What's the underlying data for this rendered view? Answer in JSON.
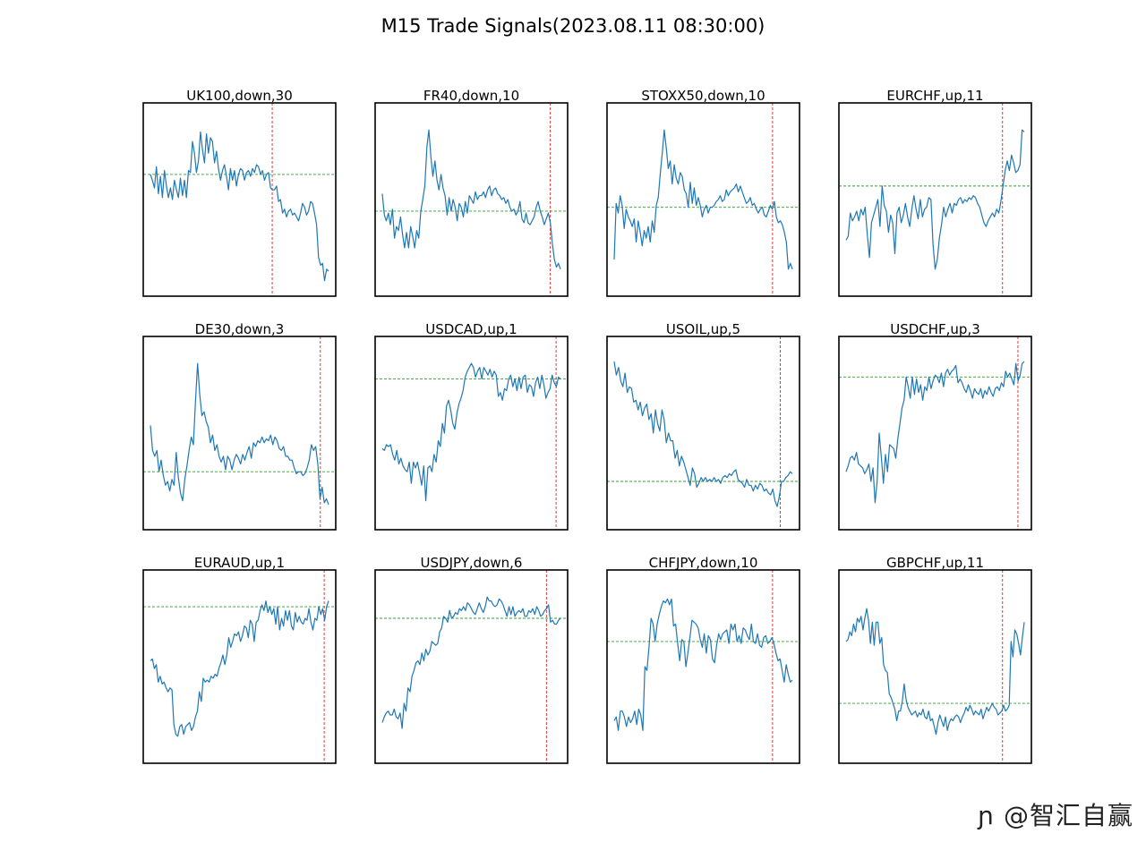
{
  "figure": {
    "title": "M15 Trade Signals(2023.08.11 08:30:00)",
    "watermark": "ɲ @智汇自赢"
  },
  "colors": {
    "price_line": "#1f77b4",
    "reference_line": "#2ca02c",
    "signal_line": "#d62728",
    "axes": "#000000"
  },
  "chart_data": [
    {
      "type": "line",
      "title": "UK100,down,30",
      "ref": 0.63,
      "signal_frac": 0.67,
      "values": [
        0.63,
        0.6,
        0.56,
        0.67,
        0.53,
        0.62,
        0.51,
        0.65,
        0.57,
        0.51,
        0.56,
        0.5,
        0.6,
        0.55,
        0.51,
        0.61,
        0.52,
        0.6,
        0.51,
        0.65,
        0.64,
        0.8,
        0.74,
        0.64,
        0.7,
        0.85,
        0.76,
        0.69,
        0.84,
        0.74,
        0.82,
        0.8,
        0.69,
        0.75,
        0.66,
        0.6,
        0.65,
        0.68,
        0.62,
        0.55,
        0.66,
        0.6,
        0.65,
        0.57,
        0.63,
        0.66,
        0.65,
        0.6,
        0.64,
        0.65,
        0.62,
        0.66,
        0.64,
        0.68,
        0.67,
        0.63,
        0.65,
        0.6,
        0.63,
        0.64,
        0.56,
        0.55,
        0.55,
        0.57,
        0.49,
        0.5,
        0.43,
        0.45,
        0.41,
        0.44,
        0.45,
        0.42,
        0.43,
        0.41,
        0.39,
        0.43,
        0.48,
        0.46,
        0.42,
        0.44,
        0.49,
        0.48,
        0.43,
        0.37,
        0.2,
        0.16,
        0.17,
        0.08,
        0.14,
        0.13
      ]
    },
    {
      "type": "line",
      "title": "FR40,down,10",
      "ref": 0.44,
      "signal_frac": 0.91,
      "values": [
        0.53,
        0.42,
        0.39,
        0.43,
        0.37,
        0.45,
        0.3,
        0.36,
        0.34,
        0.41,
        0.32,
        0.25,
        0.33,
        0.25,
        0.36,
        0.31,
        0.25,
        0.34,
        0.3,
        0.44,
        0.5,
        0.57,
        0.77,
        0.86,
        0.72,
        0.62,
        0.7,
        0.6,
        0.55,
        0.63,
        0.56,
        0.52,
        0.42,
        0.51,
        0.44,
        0.5,
        0.46,
        0.39,
        0.48,
        0.46,
        0.41,
        0.49,
        0.43,
        0.52,
        0.5,
        0.48,
        0.54,
        0.5,
        0.52,
        0.52,
        0.54,
        0.51,
        0.55,
        0.57,
        0.52,
        0.55,
        0.56,
        0.53,
        0.52,
        0.5,
        0.51,
        0.48,
        0.5,
        0.46,
        0.44,
        0.45,
        0.42,
        0.44,
        0.49,
        0.4,
        0.38,
        0.43,
        0.38,
        0.37,
        0.39,
        0.41,
        0.46,
        0.49,
        0.44,
        0.41,
        0.37,
        0.4,
        0.43,
        0.38,
        0.27,
        0.19,
        0.15,
        0.17,
        0.14
      ]
    },
    {
      "type": "line",
      "title": "STOXX50,down,10",
      "ref": 0.46,
      "signal_frac": 0.86,
      "values": [
        0.19,
        0.48,
        0.43,
        0.52,
        0.47,
        0.35,
        0.45,
        0.41,
        0.39,
        0.36,
        0.4,
        0.28,
        0.39,
        0.33,
        0.26,
        0.34,
        0.3,
        0.36,
        0.28,
        0.39,
        0.33,
        0.47,
        0.51,
        0.63,
        0.74,
        0.86,
        0.77,
        0.66,
        0.7,
        0.58,
        0.68,
        0.61,
        0.58,
        0.64,
        0.62,
        0.55,
        0.53,
        0.46,
        0.59,
        0.48,
        0.56,
        0.47,
        0.51,
        0.47,
        0.41,
        0.45,
        0.47,
        0.43,
        0.46,
        0.46,
        0.47,
        0.49,
        0.5,
        0.52,
        0.49,
        0.5,
        0.55,
        0.52,
        0.54,
        0.55,
        0.56,
        0.58,
        0.54,
        0.57,
        0.54,
        0.51,
        0.48,
        0.49,
        0.51,
        0.47,
        0.48,
        0.45,
        0.43,
        0.45,
        0.46,
        0.42,
        0.41,
        0.44,
        0.47,
        0.45,
        0.49,
        0.41,
        0.38,
        0.39,
        0.37,
        0.33,
        0.28,
        0.14,
        0.17,
        0.14
      ]
    },
    {
      "type": "line",
      "title": "EURCHF,up,11",
      "ref": 0.57,
      "signal_frac": 0.85,
      "values": [
        0.29,
        0.31,
        0.43,
        0.39,
        0.41,
        0.44,
        0.39,
        0.45,
        0.42,
        0.46,
        0.32,
        0.2,
        0.38,
        0.42,
        0.46,
        0.5,
        0.36,
        0.57,
        0.47,
        0.44,
        0.33,
        0.42,
        0.38,
        0.22,
        0.43,
        0.46,
        0.38,
        0.42,
        0.48,
        0.41,
        0.36,
        0.45,
        0.52,
        0.45,
        0.4,
        0.5,
        0.41,
        0.45,
        0.46,
        0.51,
        0.5,
        0.27,
        0.14,
        0.19,
        0.3,
        0.37,
        0.46,
        0.41,
        0.45,
        0.48,
        0.43,
        0.48,
        0.47,
        0.5,
        0.51,
        0.48,
        0.5,
        0.49,
        0.51,
        0.5,
        0.52,
        0.51,
        0.48,
        0.46,
        0.42,
        0.38,
        0.36,
        0.39,
        0.41,
        0.43,
        0.41,
        0.45,
        0.43,
        0.49,
        0.57,
        0.65,
        0.7,
        0.65,
        0.73,
        0.69,
        0.64,
        0.65,
        0.68,
        0.86,
        0.85
      ]
    },
    {
      "type": "line",
      "title": "DE30,down,3",
      "ref": 0.3,
      "signal_frac": 0.92,
      "values": [
        0.54,
        0.41,
        0.38,
        0.41,
        0.3,
        0.36,
        0.28,
        0.23,
        0.25,
        0.2,
        0.26,
        0.23,
        0.4,
        0.27,
        0.19,
        0.15,
        0.26,
        0.33,
        0.41,
        0.48,
        0.44,
        0.66,
        0.86,
        0.7,
        0.59,
        0.61,
        0.56,
        0.53,
        0.45,
        0.49,
        0.41,
        0.44,
        0.38,
        0.35,
        0.38,
        0.31,
        0.38,
        0.36,
        0.31,
        0.36,
        0.39,
        0.37,
        0.34,
        0.39,
        0.36,
        0.4,
        0.43,
        0.37,
        0.45,
        0.43,
        0.46,
        0.45,
        0.48,
        0.45,
        0.47,
        0.46,
        0.49,
        0.44,
        0.48,
        0.46,
        0.42,
        0.41,
        0.43,
        0.38,
        0.38,
        0.36,
        0.36,
        0.32,
        0.29,
        0.3,
        0.3,
        0.28,
        0.29,
        0.32,
        0.36,
        0.44,
        0.41,
        0.43,
        0.34,
        0.16,
        0.22,
        0.14,
        0.16,
        0.13
      ]
    },
    {
      "type": "line",
      "title": "USDCAD,up,1",
      "ref": 0.78,
      "signal_frac": 0.94,
      "values": [
        0.42,
        0.41,
        0.44,
        0.43,
        0.44,
        0.39,
        0.36,
        0.41,
        0.34,
        0.37,
        0.33,
        0.31,
        0.3,
        0.35,
        0.24,
        0.35,
        0.32,
        0.35,
        0.29,
        0.23,
        0.33,
        0.15,
        0.32,
        0.33,
        0.3,
        0.39,
        0.35,
        0.46,
        0.43,
        0.55,
        0.5,
        0.64,
        0.67,
        0.62,
        0.55,
        0.52,
        0.6,
        0.65,
        0.68,
        0.72,
        0.79,
        0.82,
        0.84,
        0.86,
        0.84,
        0.79,
        0.82,
        0.84,
        0.78,
        0.84,
        0.82,
        0.8,
        0.83,
        0.79,
        0.82,
        0.8,
        0.69,
        0.71,
        0.67,
        0.73,
        0.72,
        0.78,
        0.8,
        0.74,
        0.78,
        0.72,
        0.79,
        0.73,
        0.79,
        0.8,
        0.71,
        0.75,
        0.74,
        0.69,
        0.76,
        0.79,
        0.73,
        0.8,
        0.75,
        0.68,
        0.71,
        0.73,
        0.8,
        0.76,
        0.74,
        0.79,
        0.78
      ]
    },
    {
      "type": "line",
      "title": "USOIL,up,5",
      "ref": 0.25,
      "signal_frac": 0.9,
      "values": [
        0.87,
        0.8,
        0.84,
        0.77,
        0.74,
        0.81,
        0.71,
        0.74,
        0.73,
        0.66,
        0.67,
        0.62,
        0.66,
        0.59,
        0.63,
        0.65,
        0.57,
        0.6,
        0.5,
        0.62,
        0.55,
        0.51,
        0.62,
        0.57,
        0.45,
        0.5,
        0.46,
        0.46,
        0.37,
        0.41,
        0.33,
        0.38,
        0.35,
        0.31,
        0.27,
        0.23,
        0.32,
        0.29,
        0.22,
        0.24,
        0.27,
        0.25,
        0.27,
        0.25,
        0.26,
        0.25,
        0.27,
        0.25,
        0.26,
        0.24,
        0.27,
        0.28,
        0.27,
        0.29,
        0.28,
        0.3,
        0.31,
        0.26,
        0.25,
        0.24,
        0.22,
        0.26,
        0.23,
        0.23,
        0.2,
        0.23,
        0.21,
        0.24,
        0.23,
        0.2,
        0.21,
        0.19,
        0.18,
        0.21,
        0.15,
        0.12,
        0.17,
        0.25,
        0.25,
        0.27,
        0.28,
        0.3,
        0.29
      ]
    },
    {
      "type": "line",
      "title": "USDCHF,up,3",
      "ref": 0.79,
      "signal_frac": 0.93,
      "values": [
        0.3,
        0.33,
        0.37,
        0.38,
        0.36,
        0.4,
        0.34,
        0.33,
        0.32,
        0.29,
        0.31,
        0.34,
        0.25,
        0.32,
        0.14,
        0.25,
        0.5,
        0.38,
        0.24,
        0.39,
        0.3,
        0.44,
        0.43,
        0.42,
        0.37,
        0.47,
        0.55,
        0.63,
        0.67,
        0.79,
        0.74,
        0.68,
        0.79,
        0.7,
        0.78,
        0.71,
        0.75,
        0.67,
        0.74,
        0.72,
        0.79,
        0.73,
        0.77,
        0.8,
        0.79,
        0.76,
        0.81,
        0.74,
        0.81,
        0.83,
        0.8,
        0.82,
        0.83,
        0.85,
        0.76,
        0.78,
        0.76,
        0.73,
        0.71,
        0.75,
        0.72,
        0.68,
        0.73,
        0.71,
        0.7,
        0.73,
        0.68,
        0.72,
        0.7,
        0.74,
        0.71,
        0.69,
        0.73,
        0.74,
        0.72,
        0.76,
        0.74,
        0.82,
        0.79,
        0.81,
        0.78,
        0.75,
        0.86,
        0.77,
        0.8,
        0.86,
        0.87
      ]
    },
    {
      "type": "line",
      "title": "EURAUD,up,1",
      "ref": 0.81,
      "signal_frac": 0.94,
      "values": [
        0.53,
        0.54,
        0.49,
        0.51,
        0.42,
        0.45,
        0.41,
        0.42,
        0.39,
        0.37,
        0.39,
        0.38,
        0.2,
        0.15,
        0.14,
        0.19,
        0.2,
        0.15,
        0.19,
        0.2,
        0.21,
        0.17,
        0.19,
        0.24,
        0.27,
        0.37,
        0.32,
        0.44,
        0.42,
        0.43,
        0.42,
        0.45,
        0.44,
        0.46,
        0.45,
        0.49,
        0.52,
        0.56,
        0.51,
        0.56,
        0.65,
        0.6,
        0.63,
        0.67,
        0.66,
        0.68,
        0.63,
        0.66,
        0.71,
        0.7,
        0.65,
        0.74,
        0.72,
        0.63,
        0.73,
        0.74,
        0.79,
        0.82,
        0.79,
        0.84,
        0.78,
        0.81,
        0.77,
        0.8,
        0.72,
        0.81,
        0.69,
        0.75,
        0.71,
        0.79,
        0.74,
        0.79,
        0.71,
        0.69,
        0.78,
        0.73,
        0.76,
        0.73,
        0.72,
        0.75,
        0.74,
        0.8,
        0.73,
        0.69,
        0.75,
        0.74,
        0.81,
        0.77,
        0.8,
        0.74,
        0.81,
        0.84
      ]
    },
    {
      "type": "line",
      "title": "USDJPY,down,6",
      "ref": 0.75,
      "signal_frac": 0.89,
      "values": [
        0.21,
        0.24,
        0.26,
        0.27,
        0.25,
        0.25,
        0.28,
        0.24,
        0.23,
        0.26,
        0.18,
        0.31,
        0.27,
        0.39,
        0.37,
        0.45,
        0.48,
        0.52,
        0.53,
        0.51,
        0.57,
        0.53,
        0.59,
        0.56,
        0.58,
        0.63,
        0.62,
        0.61,
        0.62,
        0.68,
        0.7,
        0.76,
        0.75,
        0.73,
        0.79,
        0.75,
        0.76,
        0.78,
        0.77,
        0.8,
        0.79,
        0.81,
        0.79,
        0.83,
        0.82,
        0.8,
        0.78,
        0.77,
        0.8,
        0.83,
        0.8,
        0.78,
        0.81,
        0.86,
        0.84,
        0.84,
        0.82,
        0.81,
        0.82,
        0.85,
        0.84,
        0.82,
        0.79,
        0.76,
        0.81,
        0.77,
        0.81,
        0.76,
        0.78,
        0.79,
        0.78,
        0.8,
        0.76,
        0.76,
        0.79,
        0.78,
        0.8,
        0.77,
        0.81,
        0.79,
        0.76,
        0.77,
        0.79,
        0.8,
        0.82,
        0.73,
        0.74,
        0.72,
        0.72,
        0.74,
        0.75
      ]
    },
    {
      "type": "line",
      "title": "CHFJPY,down,10",
      "ref": 0.63,
      "signal_frac": 0.86,
      "values": [
        0.22,
        0.24,
        0.17,
        0.27,
        0.27,
        0.24,
        0.19,
        0.24,
        0.21,
        0.23,
        0.27,
        0.2,
        0.28,
        0.25,
        0.17,
        0.5,
        0.48,
        0.6,
        0.75,
        0.72,
        0.63,
        0.72,
        0.77,
        0.81,
        0.84,
        0.83,
        0.85,
        0.82,
        0.85,
        0.71,
        0.72,
        0.62,
        0.53,
        0.64,
        0.63,
        0.5,
        0.57,
        0.65,
        0.74,
        0.73,
        0.72,
        0.7,
        0.64,
        0.6,
        0.67,
        0.57,
        0.66,
        0.64,
        0.54,
        0.52,
        0.61,
        0.67,
        0.64,
        0.67,
        0.68,
        0.69,
        0.62,
        0.72,
        0.69,
        0.72,
        0.63,
        0.66,
        0.62,
        0.7,
        0.69,
        0.66,
        0.64,
        0.72,
        0.63,
        0.62,
        0.67,
        0.61,
        0.6,
        0.65,
        0.66,
        0.62,
        0.63,
        0.65,
        0.62,
        0.57,
        0.53,
        0.54,
        0.48,
        0.42,
        0.51,
        0.46,
        0.42,
        0.43
      ]
    },
    {
      "type": "line",
      "title": "GBPCHF,up,11",
      "ref": 0.31,
      "signal_frac": 0.85,
      "values": [
        0.63,
        0.64,
        0.68,
        0.66,
        0.72,
        0.68,
        0.75,
        0.73,
        0.76,
        0.69,
        0.75,
        0.8,
        0.74,
        0.62,
        0.73,
        0.61,
        0.73,
        0.73,
        0.62,
        0.65,
        0.51,
        0.48,
        0.47,
        0.36,
        0.34,
        0.31,
        0.28,
        0.22,
        0.27,
        0.27,
        0.32,
        0.41,
        0.33,
        0.29,
        0.27,
        0.25,
        0.26,
        0.27,
        0.24,
        0.26,
        0.25,
        0.28,
        0.24,
        0.23,
        0.27,
        0.22,
        0.23,
        0.19,
        0.15,
        0.21,
        0.25,
        0.22,
        0.19,
        0.24,
        0.17,
        0.21,
        0.23,
        0.22,
        0.24,
        0.25,
        0.24,
        0.21,
        0.24,
        0.26,
        0.29,
        0.27,
        0.3,
        0.28,
        0.25,
        0.27,
        0.26,
        0.25,
        0.28,
        0.23,
        0.26,
        0.29,
        0.27,
        0.29,
        0.31,
        0.29,
        0.28,
        0.25,
        0.26,
        0.27,
        0.3,
        0.27,
        0.28,
        0.3,
        0.63,
        0.55,
        0.69,
        0.67,
        0.62,
        0.56,
        0.65,
        0.73
      ]
    }
  ]
}
